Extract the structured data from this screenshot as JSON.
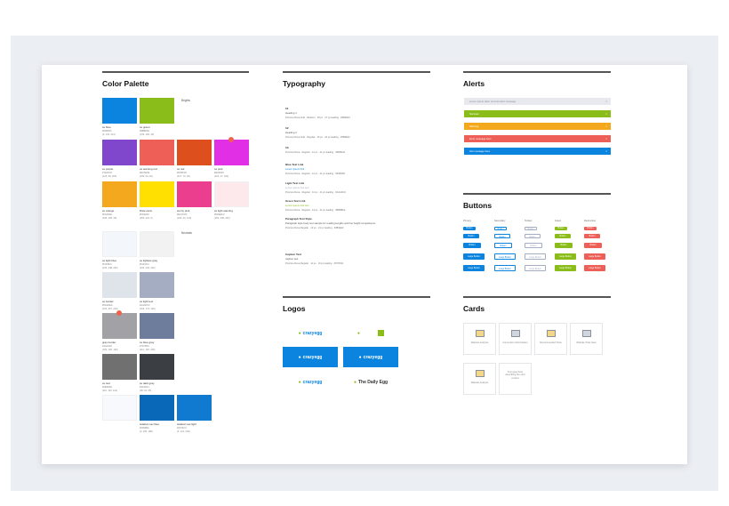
{
  "sections": {
    "color_palette": {
      "title": "Color Palette"
    },
    "typography": {
      "title": "Typography"
    },
    "alerts": {
      "title": "Alerts"
    },
    "buttons": {
      "title": "Buttons"
    },
    "logos": {
      "title": "Logos"
    },
    "cards": {
      "title": "Cards"
    }
  },
  "palette": {
    "brights_label": "Brights",
    "neutrals_label": "Neutrals",
    "brights": [
      {
        "name": "ce blue",
        "hex": "#0084D6",
        "rgb": "(0, 132, 214)",
        "color": "#0a84de"
      },
      {
        "name": "ce green",
        "hex": "#8BB81E",
        "rgb": "(139, 184, 30)",
        "color": "#8bbd1a"
      },
      {
        "name": "ce purple",
        "hex": "#7E44C8",
        "rgb": "(126, 68, 200)",
        "color": "#8046cc"
      },
      {
        "name": "ce warning red",
        "hex": "#EC5E5E",
        "rgb": "(236, 94, 94)",
        "color": "#ee5f57"
      },
      {
        "name": "ce red",
        "hex": "#D9481D",
        "rgb": "(217, 72, 29)",
        "color": "#dd501e"
      },
      {
        "name": "ce pink",
        "hex": "#E02FE0",
        "rgb": "(224, 47, 224)",
        "color": "#e12fe5"
      },
      {
        "name": "ce orange",
        "hex": "#F6A81E",
        "rgb": "(246, 168, 30)",
        "color": "#f4a81d"
      },
      {
        "name": "Dixie rains",
        "hex": "#FFE000",
        "rgb": "(255, 224, 0)",
        "color": "#ffe000"
      },
      {
        "name": "sunny pink",
        "hex": "#EC3C8C",
        "rgb": "(236, 60, 140)",
        "color": "#ec3e8e"
      },
      {
        "name": "ce light warning",
        "hex": "#FDEEF0",
        "rgb": "(253, 238, 240)",
        "color": "#fde9ec"
      }
    ],
    "neutrals": [
      {
        "name": "ce light blue",
        "hex": "#F3F8FC",
        "rgb": "(243, 248, 252)",
        "color": "#f3f7fc"
      },
      {
        "name": "ce lightest gray",
        "hex": "#F2F2F2",
        "rgb": "(242, 242, 242)",
        "color": "#f2f2f2"
      },
      {
        "name": "ce border",
        "hex": "#DFE3EA",
        "rgb": "(223, 227, 234)",
        "color": "#dfe3ea"
      },
      {
        "name": "ce light text",
        "hex": "#A4ADC2",
        "rgb": "(164, 173, 194)",
        "color": "#a4adc2"
      },
      {
        "name": "gray border",
        "hex": "#A0A0A0",
        "rgb": "(160, 160, 160)",
        "color": "#a2a2a6"
      },
      {
        "name": "ce blue gray",
        "hex": "#707D9C",
        "rgb": "(112, 125, 156)",
        "color": "#6f7d9c"
      },
      {
        "name": "ce text",
        "hex": "#6E6E6E",
        "rgb": "(110, 110, 110)",
        "color": "#707070"
      },
      {
        "name": "ce dark gray",
        "hex": "#3A3D41",
        "rgb": "(58, 61, 65)",
        "color": "#3b3e42"
      },
      {
        "name": "",
        "hex": "",
        "rgb": "",
        "color": "#f7f9fc"
      },
      {
        "name": "sidebar nav blue",
        "hex": "#0069B4",
        "rgb": "(0, 105, 180)",
        "color": "#0a68b8"
      },
      {
        "name": "sidebar nav light",
        "hex": "#0079CC",
        "rgb": "(0, 121, 204)",
        "color": "#0f7ad0"
      }
    ]
  },
  "typography_rows": [
    {
      "t1": "h1",
      "t2": "Heading 1",
      "t3": "Proxima Nova bold · Medium · 18 px · 27 px leading · #3B3E42"
    },
    {
      "t1": "h2",
      "t2": "Heading 2",
      "t3": "Proxima Nova bold · Regular · 16 px · 24 px leading · #3B3E42"
    },
    {
      "t1": "h3",
      "t2": "",
      "t3": "Proxima Nova · Regular · 14 px · 21 px leading · #3B3E42"
    },
    {
      "t1": "Blue Text Link",
      "t2": "Lorem ipsum link",
      "t3": "Proxima Nova · Regular · 14 px · 21 px leading · #0084D6"
    },
    {
      "t1": "Light Text Link",
      "t2": "Lorem ipsum link text",
      "t3": "Proxima Nova · Regular · 14 px · 21 px leading · #A4ADC2"
    },
    {
      "t1": "Green Text Link",
      "t2": "Lorem ipsum link text",
      "t3": "Proxima Nova · Regular · 14 px · 21 px leading · #8BB81E"
    },
    {
      "t1": "Paragraph Text Style",
      "t2": "Paragraph style body text sample for reading lengths and line height comparisons.",
      "t3": "Proxima Nova Regular · 13 px · 21 px leading · #3B3E42"
    },
    {
      "t1": "Caption Text",
      "t2": "caption text",
      "t3": "Proxima Nova Regular · 11 px · 16 px leading · #707D9C"
    }
  ],
  "alerts": [
    {
      "text": "Lorem ipsum dolor sit amet alert message",
      "color": "#e7e9ee",
      "fg": "#8a8f99"
    },
    {
      "text": "Success",
      "color": "#8bbd1a",
      "fg": "#ffffff"
    },
    {
      "text": "Warning",
      "color": "#f4a81d",
      "fg": "#ffffff"
    },
    {
      "text": "Error message here",
      "color": "#ee5f57",
      "fg": "#ffffff"
    },
    {
      "text": "Info message here",
      "color": "#0a84de",
      "fg": "#ffffff"
    }
  ],
  "button_columns": [
    {
      "header": "Primary",
      "color": "#0a84de",
      "style": "solid"
    },
    {
      "header": "Secondary",
      "color": "#0a84de",
      "style": "outline"
    },
    {
      "header": "Tertiary",
      "color": "#a4adc2",
      "style": "outline"
    },
    {
      "header": "Green",
      "color": "#8bbd1a",
      "style": "solid"
    },
    {
      "header": "Destructive",
      "color": "#ee5f57",
      "style": "solid"
    }
  ],
  "button_labels": [
    "Button",
    "Button",
    "Button",
    "Large Button",
    "Large Button"
  ],
  "logos": [
    {
      "text": "crazyegg",
      "bg": "#ffffff",
      "fg": "#0a84de"
    },
    {
      "text": "",
      "bg": "#ffffff",
      "fg": "#8bbd1a"
    },
    {
      "text": "crazyegg",
      "bg": "#0a84de",
      "fg": "#ffffff"
    },
    {
      "text": "crazyegg",
      "bg": "#0a84de",
      "fg": "#ffffff"
    },
    {
      "text": "crazyegg",
      "bg": "#ffffff",
      "fg": "#0a84de"
    },
    {
      "text": "The Daily Egg",
      "bg": "#ffffff",
      "fg": "#333333"
    }
  ],
  "cards": [
    {
      "text": "Website Analysis",
      "icon": "clipboard-icon"
    },
    {
      "text": "Conversion Optimization",
      "icon": "handshake-icon"
    },
    {
      "text": "Recommended Tools",
      "icon": "person-chart-icon"
    },
    {
      "text": "Website Tools Here",
      "icon": "monitor-icon"
    },
    {
      "text": "Website Analysis",
      "icon": "clipboard-icon"
    },
    {
      "text": "Text goes here describing the card content",
      "icon": ""
    }
  ]
}
